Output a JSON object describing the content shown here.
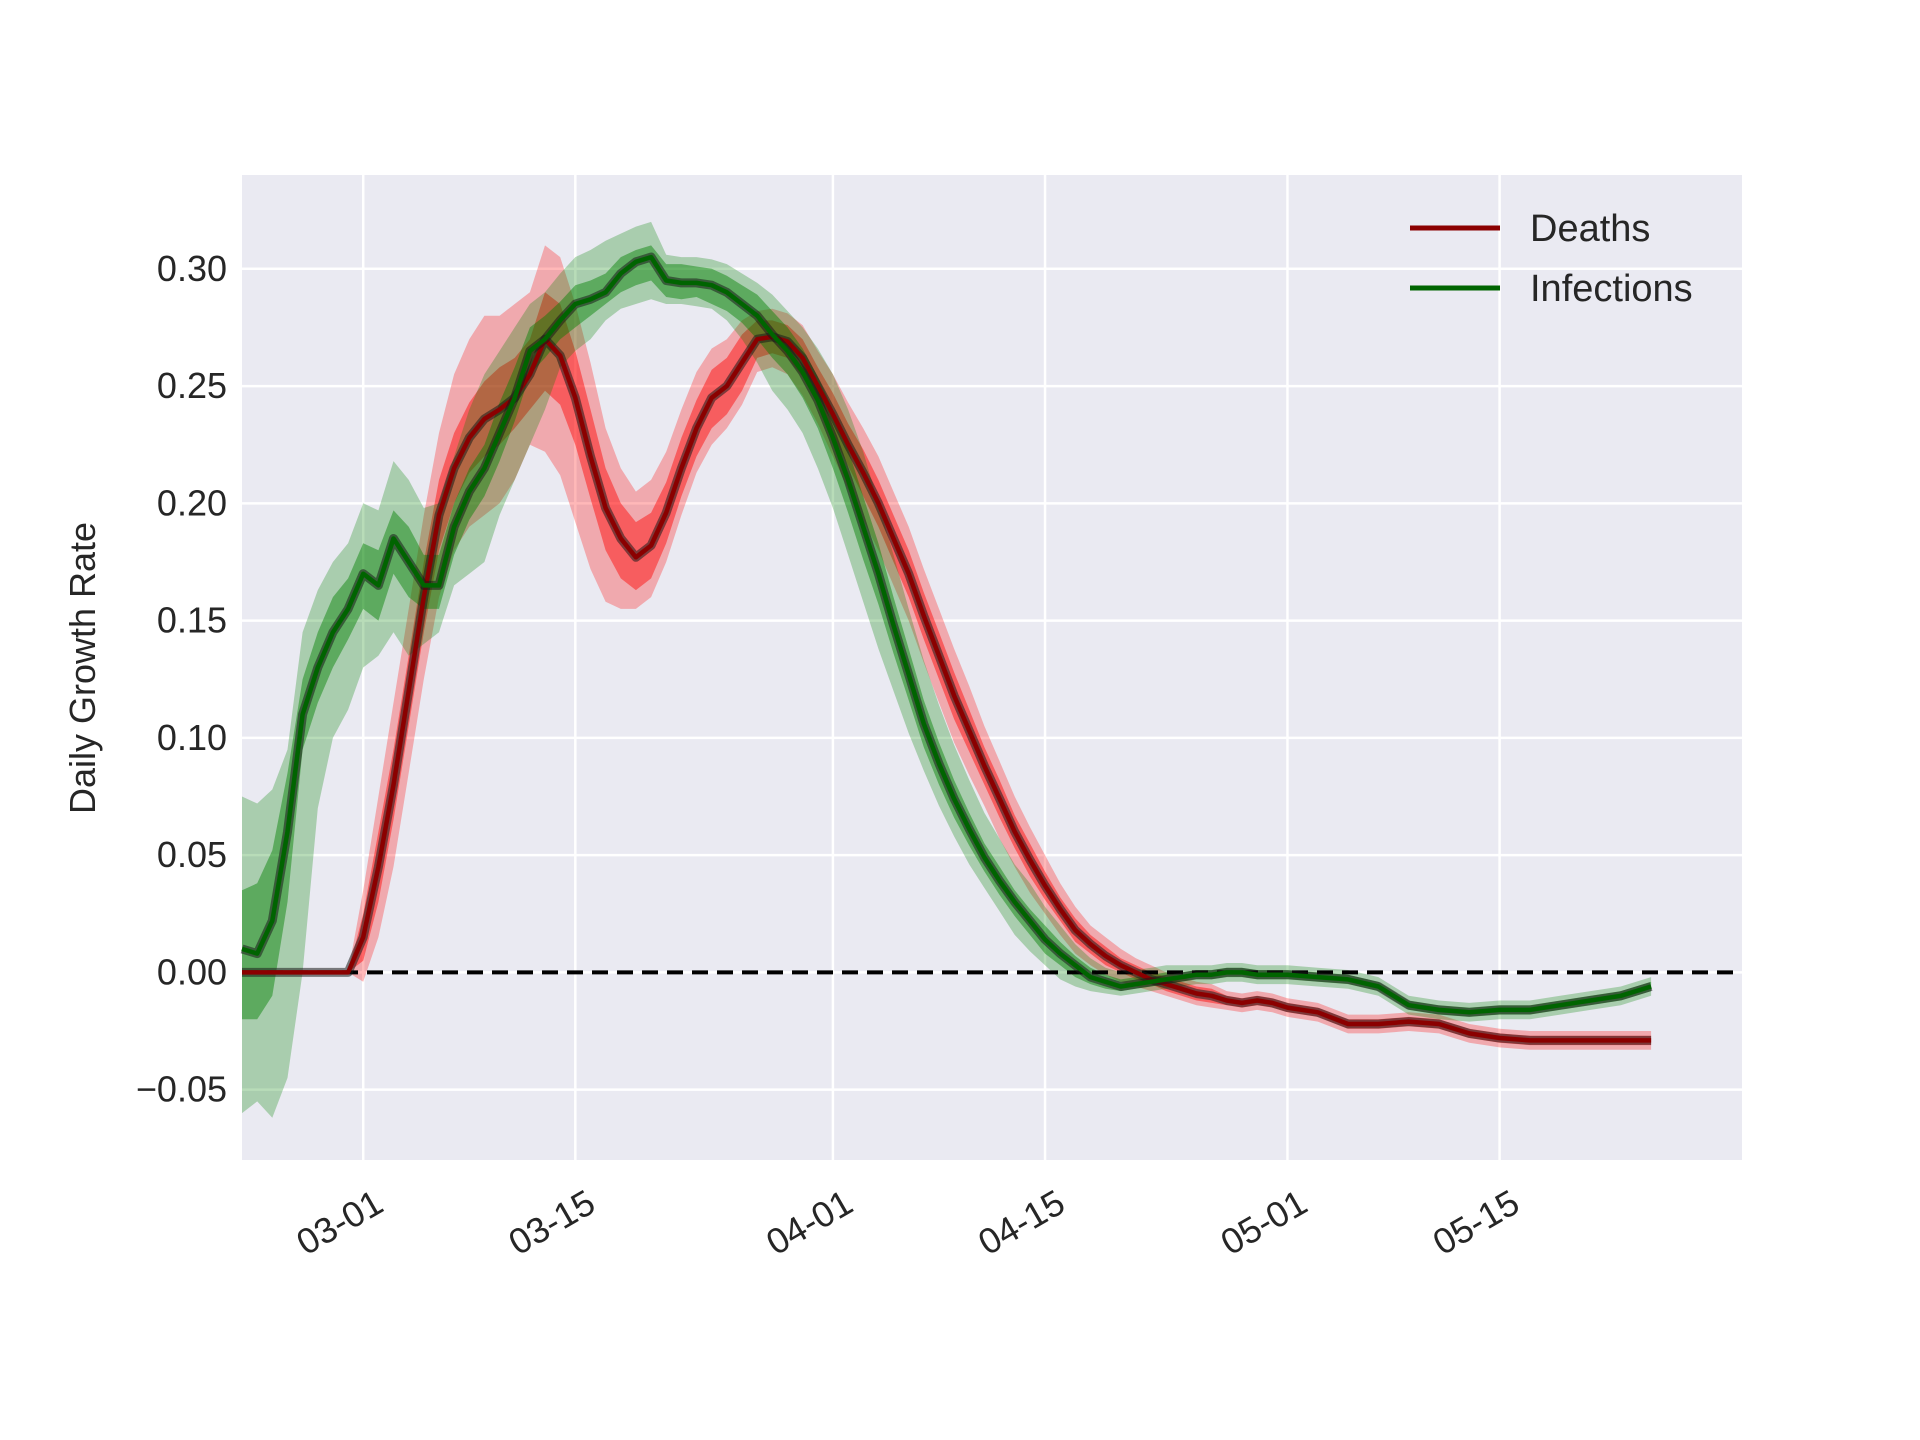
{
  "chart_data": {
    "type": "line",
    "title": "",
    "xlabel": "",
    "ylabel": "Daily Growth Rate",
    "xlim": [
      "2020-02-22",
      "2020-05-31"
    ],
    "ylim": [
      -0.08,
      0.34
    ],
    "grid": true,
    "legend_position": "top-right",
    "x_ticks": [
      "2020-03-01",
      "2020-03-15",
      "2020-04-01",
      "2020-04-15",
      "2020-05-01",
      "2020-05-15"
    ],
    "x_tick_labels": [
      "03-01",
      "03-15",
      "04-01",
      "04-15",
      "05-01",
      "05-15"
    ],
    "y_ticks": [
      -0.05,
      0.0,
      0.05,
      0.1,
      0.15,
      0.2,
      0.25,
      0.3
    ],
    "y_tick_labels": [
      "−0.05",
      "0.00",
      "0.05",
      "0.10",
      "0.15",
      "0.20",
      "0.25",
      "0.30"
    ],
    "reference_line": {
      "y": 0.0,
      "style": "dashed",
      "color": "#000000"
    },
    "colors": {
      "background": "#eaeaf2",
      "grid": "#ffffff",
      "deaths_line": "#8b0000",
      "deaths_band": "#ff0000",
      "infections_line": "#006400",
      "infections_band": "#008000",
      "median_line": "#1a1a1a"
    },
    "series": [
      {
        "name": "Deaths",
        "x": [
          "2020-02-22",
          "2020-02-24",
          "2020-02-26",
          "2020-02-28",
          "2020-02-29",
          "2020-03-01",
          "2020-03-02",
          "2020-03-03",
          "2020-03-04",
          "2020-03-05",
          "2020-03-06",
          "2020-03-07",
          "2020-03-08",
          "2020-03-09",
          "2020-03-10",
          "2020-03-11",
          "2020-03-12",
          "2020-03-13",
          "2020-03-14",
          "2020-03-15",
          "2020-03-16",
          "2020-03-17",
          "2020-03-18",
          "2020-03-19",
          "2020-03-20",
          "2020-03-21",
          "2020-03-22",
          "2020-03-23",
          "2020-03-24",
          "2020-03-25",
          "2020-03-26",
          "2020-03-27",
          "2020-03-28",
          "2020-03-29",
          "2020-03-30",
          "2020-03-31",
          "2020-04-01",
          "2020-04-02",
          "2020-04-03",
          "2020-04-04",
          "2020-04-05",
          "2020-04-06",
          "2020-04-07",
          "2020-04-08",
          "2020-04-09",
          "2020-04-10",
          "2020-04-11",
          "2020-04-12",
          "2020-04-13",
          "2020-04-14",
          "2020-04-15",
          "2020-04-16",
          "2020-04-17",
          "2020-04-18",
          "2020-04-19",
          "2020-04-20",
          "2020-04-21",
          "2020-04-22",
          "2020-04-23",
          "2020-04-24",
          "2020-04-25",
          "2020-04-26",
          "2020-04-27",
          "2020-04-28",
          "2020-04-29",
          "2020-04-30",
          "2020-05-01",
          "2020-05-03",
          "2020-05-05",
          "2020-05-07",
          "2020-05-09",
          "2020-05-11",
          "2020-05-13",
          "2020-05-15",
          "2020-05-17",
          "2020-05-19",
          "2020-05-21",
          "2020-05-23",
          "2020-05-25"
        ],
        "values": [
          0.0,
          0.0,
          0.0,
          0.0,
          0.0,
          0.015,
          0.045,
          0.08,
          0.12,
          0.16,
          0.195,
          0.215,
          0.228,
          0.236,
          0.24,
          0.245,
          0.255,
          0.27,
          0.263,
          0.245,
          0.22,
          0.198,
          0.185,
          0.177,
          0.182,
          0.196,
          0.215,
          0.232,
          0.245,
          0.25,
          0.26,
          0.27,
          0.271,
          0.269,
          0.262,
          0.25,
          0.238,
          0.225,
          0.213,
          0.2,
          0.185,
          0.17,
          0.152,
          0.135,
          0.118,
          0.103,
          0.088,
          0.074,
          0.06,
          0.048,
          0.037,
          0.027,
          0.018,
          0.012,
          0.007,
          0.003,
          0.0,
          -0.003,
          -0.005,
          -0.007,
          -0.009,
          -0.01,
          -0.012,
          -0.013,
          -0.012,
          -0.013,
          -0.015,
          -0.017,
          -0.022,
          -0.022,
          -0.021,
          -0.022,
          -0.026,
          -0.028,
          -0.029,
          -0.029,
          -0.029,
          -0.029,
          -0.029
        ],
        "lower_50": [
          0.0,
          0.0,
          0.0,
          0.0,
          0.0,
          0.005,
          0.03,
          0.065,
          0.105,
          0.145,
          0.18,
          0.2,
          0.213,
          0.22,
          0.225,
          0.232,
          0.24,
          0.248,
          0.242,
          0.225,
          0.202,
          0.18,
          0.168,
          0.163,
          0.168,
          0.183,
          0.203,
          0.22,
          0.232,
          0.238,
          0.248,
          0.262,
          0.264,
          0.262,
          0.254,
          0.242,
          0.229,
          0.216,
          0.203,
          0.19,
          0.175,
          0.16,
          0.142,
          0.125,
          0.108,
          0.094,
          0.08,
          0.066,
          0.053,
          0.041,
          0.031,
          0.022,
          0.013,
          0.008,
          0.003,
          0.0,
          -0.003,
          -0.005,
          -0.008,
          -0.01,
          -0.012,
          -0.013,
          -0.014,
          -0.015,
          -0.014,
          -0.015,
          -0.017,
          -0.019,
          -0.024,
          -0.024,
          -0.023,
          -0.024,
          -0.028,
          -0.03,
          -0.031,
          -0.031,
          -0.031,
          -0.031,
          -0.031
        ],
        "upper_50": [
          0.0,
          0.0,
          0.0,
          0.0,
          0.0,
          0.025,
          0.06,
          0.095,
          0.135,
          0.175,
          0.21,
          0.23,
          0.243,
          0.252,
          0.258,
          0.262,
          0.27,
          0.29,
          0.285,
          0.265,
          0.24,
          0.215,
          0.2,
          0.192,
          0.196,
          0.209,
          0.228,
          0.244,
          0.257,
          0.262,
          0.272,
          0.278,
          0.278,
          0.276,
          0.27,
          0.258,
          0.247,
          0.234,
          0.223,
          0.21,
          0.195,
          0.18,
          0.162,
          0.145,
          0.128,
          0.112,
          0.096,
          0.082,
          0.067,
          0.055,
          0.043,
          0.032,
          0.023,
          0.016,
          0.011,
          0.006,
          0.003,
          0.0,
          -0.002,
          -0.004,
          -0.006,
          -0.007,
          -0.01,
          -0.011,
          -0.01,
          -0.011,
          -0.013,
          -0.015,
          -0.02,
          -0.02,
          -0.019,
          -0.02,
          -0.024,
          -0.026,
          -0.027,
          -0.027,
          -0.027,
          -0.027,
          -0.027
        ],
        "lower_95": [
          0.0,
          0.0,
          0.0,
          0.0,
          0.0,
          -0.004,
          0.015,
          0.045,
          0.085,
          0.125,
          0.16,
          0.18,
          0.19,
          0.195,
          0.2,
          0.21,
          0.225,
          0.222,
          0.212,
          0.192,
          0.172,
          0.158,
          0.155,
          0.155,
          0.16,
          0.175,
          0.195,
          0.213,
          0.225,
          0.232,
          0.242,
          0.256,
          0.258,
          0.255,
          0.246,
          0.234,
          0.22,
          0.206,
          0.193,
          0.18,
          0.165,
          0.15,
          0.132,
          0.115,
          0.098,
          0.084,
          0.071,
          0.057,
          0.045,
          0.034,
          0.025,
          0.016,
          0.008,
          0.003,
          -0.001,
          -0.004,
          -0.006,
          -0.008,
          -0.01,
          -0.012,
          -0.014,
          -0.015,
          -0.016,
          -0.017,
          -0.016,
          -0.017,
          -0.019,
          -0.021,
          -0.026,
          -0.026,
          -0.025,
          -0.026,
          -0.03,
          -0.032,
          -0.033,
          -0.033,
          -0.033,
          -0.033,
          -0.033
        ],
        "upper_95": [
          0.0,
          0.0,
          0.0,
          0.0,
          0.0,
          0.035,
          0.075,
          0.115,
          0.155,
          0.195,
          0.23,
          0.255,
          0.27,
          0.28,
          0.28,
          0.285,
          0.29,
          0.31,
          0.305,
          0.285,
          0.26,
          0.232,
          0.215,
          0.205,
          0.21,
          0.222,
          0.24,
          0.256,
          0.266,
          0.27,
          0.278,
          0.282,
          0.283,
          0.281,
          0.276,
          0.265,
          0.255,
          0.243,
          0.232,
          0.22,
          0.205,
          0.19,
          0.172,
          0.155,
          0.138,
          0.122,
          0.105,
          0.09,
          0.075,
          0.062,
          0.05,
          0.038,
          0.028,
          0.02,
          0.015,
          0.01,
          0.006,
          0.003,
          0.0,
          -0.002,
          -0.004,
          -0.005,
          -0.008,
          -0.009,
          -0.008,
          -0.009,
          -0.011,
          -0.013,
          -0.018,
          -0.018,
          -0.017,
          -0.018,
          -0.022,
          -0.024,
          -0.025,
          -0.025,
          -0.025,
          -0.025,
          -0.025
        ]
      },
      {
        "name": "Infections",
        "x": [
          "2020-02-22",
          "2020-02-23",
          "2020-02-24",
          "2020-02-25",
          "2020-02-26",
          "2020-02-27",
          "2020-02-28",
          "2020-02-29",
          "2020-03-01",
          "2020-03-02",
          "2020-03-03",
          "2020-03-04",
          "2020-03-05",
          "2020-03-06",
          "2020-03-07",
          "2020-03-08",
          "2020-03-09",
          "2020-03-10",
          "2020-03-11",
          "2020-03-12",
          "2020-03-13",
          "2020-03-14",
          "2020-03-15",
          "2020-03-16",
          "2020-03-17",
          "2020-03-18",
          "2020-03-19",
          "2020-03-20",
          "2020-03-21",
          "2020-03-22",
          "2020-03-23",
          "2020-03-24",
          "2020-03-25",
          "2020-03-26",
          "2020-03-27",
          "2020-03-28",
          "2020-03-29",
          "2020-03-30",
          "2020-03-31",
          "2020-04-01",
          "2020-04-02",
          "2020-04-03",
          "2020-04-04",
          "2020-04-05",
          "2020-04-06",
          "2020-04-07",
          "2020-04-08",
          "2020-04-09",
          "2020-04-10",
          "2020-04-11",
          "2020-04-12",
          "2020-04-13",
          "2020-04-14",
          "2020-04-15",
          "2020-04-16",
          "2020-04-17",
          "2020-04-18",
          "2020-04-19",
          "2020-04-20",
          "2020-04-21",
          "2020-04-22",
          "2020-04-23",
          "2020-04-24",
          "2020-04-25",
          "2020-04-26",
          "2020-04-27",
          "2020-04-28",
          "2020-04-29",
          "2020-04-30",
          "2020-05-01",
          "2020-05-03",
          "2020-05-05",
          "2020-05-07",
          "2020-05-09",
          "2020-05-11",
          "2020-05-13",
          "2020-05-15",
          "2020-05-17",
          "2020-05-19",
          "2020-05-21",
          "2020-05-23",
          "2020-05-25"
        ],
        "values": [
          0.01,
          0.008,
          0.022,
          0.06,
          0.11,
          0.13,
          0.145,
          0.155,
          0.17,
          0.165,
          0.185,
          0.175,
          0.165,
          0.165,
          0.19,
          0.205,
          0.215,
          0.23,
          0.245,
          0.265,
          0.27,
          0.278,
          0.285,
          0.287,
          0.29,
          0.298,
          0.303,
          0.305,
          0.295,
          0.294,
          0.294,
          0.293,
          0.29,
          0.285,
          0.28,
          0.272,
          0.265,
          0.256,
          0.244,
          0.228,
          0.21,
          0.19,
          0.17,
          0.148,
          0.127,
          0.106,
          0.089,
          0.074,
          0.061,
          0.049,
          0.039,
          0.03,
          0.022,
          0.014,
          0.008,
          0.003,
          -0.002,
          -0.004,
          -0.006,
          -0.005,
          -0.004,
          -0.003,
          -0.002,
          -0.001,
          -0.001,
          0.0,
          0.0,
          -0.001,
          -0.001,
          -0.001,
          -0.002,
          -0.003,
          -0.006,
          -0.014,
          -0.016,
          -0.017,
          -0.016,
          -0.016,
          -0.014,
          -0.012,
          -0.01,
          -0.006
        ],
        "lower_50": [
          -0.02,
          -0.02,
          -0.01,
          0.03,
          0.095,
          0.115,
          0.13,
          0.142,
          0.155,
          0.15,
          0.17,
          0.16,
          0.155,
          0.155,
          0.178,
          0.193,
          0.203,
          0.218,
          0.235,
          0.255,
          0.262,
          0.27,
          0.275,
          0.28,
          0.285,
          0.29,
          0.293,
          0.295,
          0.288,
          0.287,
          0.288,
          0.285,
          0.282,
          0.277,
          0.27,
          0.262,
          0.255,
          0.245,
          0.232,
          0.215,
          0.196,
          0.176,
          0.157,
          0.136,
          0.116,
          0.096,
          0.08,
          0.066,
          0.054,
          0.043,
          0.033,
          0.024,
          0.016,
          0.008,
          0.003,
          -0.002,
          -0.005,
          -0.007,
          -0.008,
          -0.007,
          -0.006,
          -0.005,
          -0.004,
          -0.003,
          -0.003,
          -0.002,
          -0.002,
          -0.003,
          -0.003,
          -0.003,
          -0.004,
          -0.005,
          -0.008,
          -0.016,
          -0.018,
          -0.019,
          -0.018,
          -0.018,
          -0.016,
          -0.014,
          -0.012,
          -0.008
        ],
        "upper_50": [
          0.035,
          0.038,
          0.052,
          0.085,
          0.125,
          0.145,
          0.16,
          0.168,
          0.183,
          0.18,
          0.197,
          0.19,
          0.178,
          0.178,
          0.2,
          0.215,
          0.225,
          0.243,
          0.258,
          0.275,
          0.28,
          0.286,
          0.293,
          0.295,
          0.298,
          0.305,
          0.308,
          0.31,
          0.302,
          0.302,
          0.301,
          0.3,
          0.297,
          0.293,
          0.289,
          0.282,
          0.275,
          0.266,
          0.254,
          0.24,
          0.223,
          0.203,
          0.183,
          0.16,
          0.138,
          0.116,
          0.098,
          0.082,
          0.068,
          0.055,
          0.045,
          0.035,
          0.027,
          0.02,
          0.013,
          0.007,
          0.002,
          -0.001,
          -0.003,
          -0.002,
          -0.001,
          0.0,
          0.0,
          0.001,
          0.001,
          0.002,
          0.002,
          0.001,
          0.001,
          0.001,
          0.0,
          -0.001,
          -0.004,
          -0.012,
          -0.014,
          -0.015,
          -0.014,
          -0.014,
          -0.012,
          -0.01,
          -0.008,
          -0.004
        ],
        "lower_95": [
          -0.06,
          -0.055,
          -0.062,
          -0.045,
          0.0,
          0.07,
          0.1,
          0.112,
          0.13,
          0.135,
          0.145,
          0.135,
          0.14,
          0.145,
          0.165,
          0.17,
          0.175,
          0.195,
          0.21,
          0.225,
          0.24,
          0.258,
          0.265,
          0.27,
          0.278,
          0.283,
          0.285,
          0.287,
          0.285,
          0.285,
          0.284,
          0.283,
          0.278,
          0.27,
          0.26,
          0.248,
          0.24,
          0.23,
          0.215,
          0.198,
          0.178,
          0.158,
          0.138,
          0.12,
          0.102,
          0.086,
          0.071,
          0.058,
          0.046,
          0.036,
          0.026,
          0.016,
          0.009,
          0.003,
          -0.003,
          -0.006,
          -0.008,
          -0.009,
          -0.01,
          -0.009,
          -0.008,
          -0.007,
          -0.006,
          -0.005,
          -0.005,
          -0.004,
          -0.004,
          -0.005,
          -0.005,
          -0.005,
          -0.006,
          -0.007,
          -0.01,
          -0.018,
          -0.02,
          -0.021,
          -0.02,
          -0.02,
          -0.018,
          -0.016,
          -0.014,
          -0.01
        ],
        "upper_95": [
          0.075,
          0.072,
          0.078,
          0.095,
          0.145,
          0.163,
          0.175,
          0.183,
          0.2,
          0.197,
          0.218,
          0.21,
          0.198,
          0.2,
          0.22,
          0.24,
          0.255,
          0.265,
          0.275,
          0.285,
          0.29,
          0.298,
          0.305,
          0.308,
          0.312,
          0.315,
          0.318,
          0.32,
          0.306,
          0.305,
          0.305,
          0.304,
          0.302,
          0.298,
          0.294,
          0.289,
          0.282,
          0.275,
          0.266,
          0.255,
          0.24,
          0.222,
          0.2,
          0.178,
          0.155,
          0.133,
          0.114,
          0.097,
          0.082,
          0.068,
          0.057,
          0.046,
          0.038,
          0.028,
          0.02,
          0.012,
          0.006,
          0.002,
          0.0,
          0.001,
          0.002,
          0.003,
          0.003,
          0.003,
          0.003,
          0.004,
          0.004,
          0.003,
          0.003,
          0.003,
          0.002,
          0.001,
          -0.002,
          -0.01,
          -0.012,
          -0.013,
          -0.012,
          -0.012,
          -0.01,
          -0.008,
          -0.006,
          -0.002
        ]
      }
    ]
  }
}
